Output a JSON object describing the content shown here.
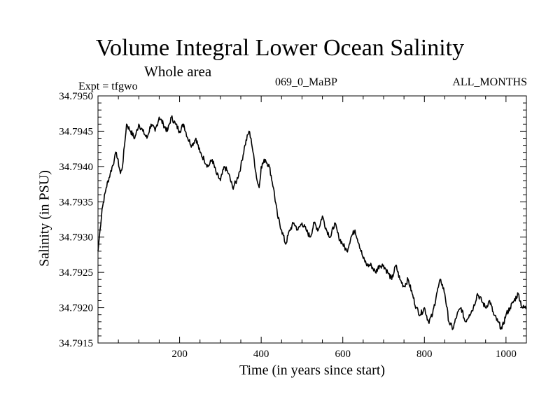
{
  "chart_data": {
    "type": "line",
    "title": "Volume Integral Lower Ocean Salinity",
    "subtitle": "Whole area",
    "annotations": {
      "experiment": "Expt = tfgwo",
      "experiment_id": "069_0_MaBP",
      "months": "ALL_MONTHS"
    },
    "xlabel": "Time (in years since start)",
    "ylabel": "Salinity (in PSU)",
    "xlim": [
      0,
      1050
    ],
    "ylim": [
      34.7915,
      34.795
    ],
    "xticks": [
      200,
      400,
      600,
      800,
      1000
    ],
    "yticks": [
      "34.7915",
      "34.7920",
      "34.7925",
      "34.7930",
      "34.7935",
      "34.7940",
      "34.7945",
      "34.7950"
    ],
    "grid": false,
    "series": [
      {
        "name": "salinity",
        "x": [
          0,
          5,
          10,
          20,
          30,
          40,
          45,
          55,
          60,
          65,
          70,
          80,
          90,
          100,
          110,
          120,
          130,
          140,
          150,
          160,
          170,
          180,
          190,
          200,
          210,
          220,
          230,
          240,
          250,
          260,
          270,
          280,
          290,
          300,
          310,
          320,
          330,
          340,
          350,
          360,
          370,
          375,
          380,
          390,
          395,
          400,
          410,
          420,
          430,
          440,
          450,
          460,
          470,
          480,
          490,
          500,
          510,
          520,
          530,
          540,
          550,
          560,
          570,
          580,
          590,
          600,
          610,
          620,
          630,
          640,
          650,
          660,
          670,
          680,
          690,
          700,
          710,
          720,
          730,
          740,
          750,
          760,
          770,
          780,
          790,
          800,
          810,
          820,
          830,
          840,
          850,
          860,
          870,
          880,
          890,
          900,
          910,
          920,
          930,
          940,
          950,
          960,
          970,
          980,
          990,
          1000,
          1010,
          1020,
          1030,
          1040,
          1050
        ],
        "values": [
          34.7928,
          34.7931,
          34.7934,
          34.7937,
          34.7939,
          34.7941,
          34.7942,
          34.7939,
          34.794,
          34.7943,
          34.7946,
          34.7945,
          34.7944,
          34.7946,
          34.7945,
          34.7944,
          34.7946,
          34.7945,
          34.7947,
          34.7946,
          34.7945,
          34.7947,
          34.7946,
          34.7945,
          34.7946,
          34.7944,
          34.7943,
          34.7944,
          34.7942,
          34.7941,
          34.794,
          34.7941,
          34.7939,
          34.7938,
          34.794,
          34.7939,
          34.7937,
          34.7938,
          34.794,
          34.7943,
          34.7945,
          34.7944,
          34.7942,
          34.7938,
          34.7937,
          34.794,
          34.7941,
          34.794,
          34.7937,
          34.7933,
          34.7931,
          34.7929,
          34.7931,
          34.7932,
          34.7931,
          34.7932,
          34.7931,
          34.793,
          34.7932,
          34.7931,
          34.7933,
          34.7931,
          34.793,
          34.7932,
          34.793,
          34.7929,
          34.7928,
          34.793,
          34.7931,
          34.7929,
          34.7927,
          34.7926,
          34.7926,
          34.7925,
          34.7926,
          34.7926,
          34.7925,
          34.7924,
          34.7926,
          34.7924,
          34.7923,
          34.7924,
          34.7922,
          34.792,
          34.7919,
          34.792,
          34.7918,
          34.7919,
          34.7922,
          34.7924,
          34.7922,
          34.7918,
          34.7917,
          34.7919,
          34.792,
          34.7918,
          34.7919,
          34.792,
          34.7922,
          34.7921,
          34.792,
          34.7921,
          34.7919,
          34.7918,
          34.7917,
          34.7919,
          34.792,
          34.7921,
          34.7922,
          34.792,
          34.792
        ]
      }
    ]
  }
}
